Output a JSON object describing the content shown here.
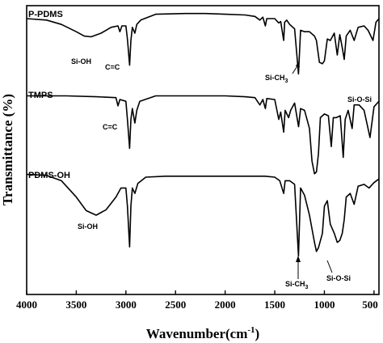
{
  "chart_data": {
    "type": "line",
    "xlabel": "Wavenumber(cm",
    "xlabel_sup": "-1",
    "xlabel_end": ")",
    "ylabel": "Transmittance (%)",
    "xlim": [
      4000,
      450
    ],
    "x_reversed": true,
    "xticks": [
      4000,
      3500,
      3000,
      2500,
      2000,
      1500,
      1000,
      500
    ],
    "grid": false,
    "series": [
      {
        "name": "P-PDMS",
        "points": [
          [
            4000,
            0.9
          ],
          [
            3800,
            0.88
          ],
          [
            3650,
            0.82
          ],
          [
            3500,
            0.72
          ],
          [
            3420,
            0.66
          ],
          [
            3350,
            0.65
          ],
          [
            3250,
            0.7
          ],
          [
            3150,
            0.78
          ],
          [
            3080,
            0.8
          ],
          [
            3060,
            0.72
          ],
          [
            3040,
            0.8
          ],
          [
            3000,
            0.8
          ],
          [
            2985,
            0.62
          ],
          [
            2963,
            0.26
          ],
          [
            2950,
            0.6
          ],
          [
            2935,
            0.78
          ],
          [
            2910,
            0.7
          ],
          [
            2890,
            0.82
          ],
          [
            2850,
            0.88
          ],
          [
            2700,
            0.96
          ],
          [
            2400,
            0.97
          ],
          [
            2200,
            0.97
          ],
          [
            2000,
            0.96
          ],
          [
            1800,
            0.95
          ],
          [
            1700,
            0.93
          ],
          [
            1650,
            0.88
          ],
          [
            1620,
            0.92
          ],
          [
            1595,
            0.8
          ],
          [
            1580,
            0.9
          ],
          [
            1500,
            0.9
          ],
          [
            1460,
            0.84
          ],
          [
            1440,
            0.86
          ],
          [
            1410,
            0.6
          ],
          [
            1400,
            0.85
          ],
          [
            1380,
            0.88
          ],
          [
            1350,
            0.82
          ],
          [
            1300,
            0.76
          ],
          [
            1261,
            0.14
          ],
          [
            1240,
            0.74
          ],
          [
            1200,
            0.72
          ],
          [
            1150,
            0.72
          ],
          [
            1100,
            0.66
          ],
          [
            1080,
            0.6
          ],
          [
            1050,
            0.3
          ],
          [
            1020,
            0.28
          ],
          [
            1000,
            0.32
          ],
          [
            970,
            0.62
          ],
          [
            940,
            0.6
          ],
          [
            900,
            0.7
          ],
          [
            870,
            0.4
          ],
          [
            845,
            0.68
          ],
          [
            820,
            0.5
          ],
          [
            800,
            0.34
          ],
          [
            780,
            0.66
          ],
          [
            740,
            0.74
          ],
          [
            700,
            0.6
          ],
          [
            660,
            0.78
          ],
          [
            600,
            0.8
          ],
          [
            560,
            0.74
          ],
          [
            510,
            0.6
          ],
          [
            480,
            0.85
          ],
          [
            450,
            0.9
          ]
        ],
        "annotations": [
          "Si-OH",
          "C=C",
          "Si-CH",
          "3",
          "Si-O-Si"
        ]
      },
      {
        "name": "TMPS",
        "points": [
          [
            4000,
            0.96
          ],
          [
            3600,
            0.96
          ],
          [
            3300,
            0.95
          ],
          [
            3100,
            0.94
          ],
          [
            3080,
            0.85
          ],
          [
            3060,
            0.92
          ],
          [
            3000,
            0.9
          ],
          [
            2985,
            0.7
          ],
          [
            2963,
            0.38
          ],
          [
            2950,
            0.7
          ],
          [
            2935,
            0.82
          ],
          [
            2910,
            0.66
          ],
          [
            2890,
            0.8
          ],
          [
            2860,
            0.9
          ],
          [
            2700,
            0.96
          ],
          [
            2400,
            0.96
          ],
          [
            2200,
            0.96
          ],
          [
            2000,
            0.96
          ],
          [
            1800,
            0.95
          ],
          [
            1700,
            0.94
          ],
          [
            1650,
            0.86
          ],
          [
            1620,
            0.92
          ],
          [
            1595,
            0.82
          ],
          [
            1580,
            0.93
          ],
          [
            1500,
            0.92
          ],
          [
            1460,
            0.7
          ],
          [
            1440,
            0.78
          ],
          [
            1410,
            0.56
          ],
          [
            1395,
            0.8
          ],
          [
            1360,
            0.72
          ],
          [
            1340,
            0.8
          ],
          [
            1300,
            0.88
          ],
          [
            1260,
            0.62
          ],
          [
            1240,
            0.82
          ],
          [
            1200,
            0.8
          ],
          [
            1150,
            0.6
          ],
          [
            1125,
            0.24
          ],
          [
            1100,
            0.1
          ],
          [
            1080,
            0.12
          ],
          [
            1060,
            0.32
          ],
          [
            1040,
            0.72
          ],
          [
            1000,
            0.76
          ],
          [
            960,
            0.74
          ],
          [
            930,
            0.4
          ],
          [
            910,
            0.72
          ],
          [
            880,
            0.72
          ],
          [
            840,
            0.74
          ],
          [
            810,
            0.28
          ],
          [
            790,
            0.7
          ],
          [
            760,
            0.8
          ],
          [
            720,
            0.6
          ],
          [
            700,
            0.86
          ],
          [
            650,
            0.86
          ],
          [
            600,
            0.8
          ],
          [
            540,
            0.5
          ],
          [
            500,
            0.84
          ],
          [
            450,
            0.9
          ]
        ],
        "annotations": [
          "C=C"
        ]
      },
      {
        "name": "PDMS-OH",
        "points": [
          [
            4000,
            0.95
          ],
          [
            3800,
            0.94
          ],
          [
            3650,
            0.88
          ],
          [
            3500,
            0.7
          ],
          [
            3400,
            0.55
          ],
          [
            3300,
            0.5
          ],
          [
            3200,
            0.56
          ],
          [
            3100,
            0.7
          ],
          [
            3050,
            0.8
          ],
          [
            3000,
            0.8
          ],
          [
            2985,
            0.6
          ],
          [
            2963,
            0.15
          ],
          [
            2950,
            0.6
          ],
          [
            2935,
            0.8
          ],
          [
            2910,
            0.74
          ],
          [
            2880,
            0.85
          ],
          [
            2800,
            0.92
          ],
          [
            2600,
            0.93
          ],
          [
            2400,
            0.93
          ],
          [
            2200,
            0.93
          ],
          [
            2000,
            0.93
          ],
          [
            1800,
            0.93
          ],
          [
            1600,
            0.93
          ],
          [
            1500,
            0.92
          ],
          [
            1450,
            0.88
          ],
          [
            1410,
            0.74
          ],
          [
            1395,
            0.88
          ],
          [
            1350,
            0.88
          ],
          [
            1300,
            0.84
          ],
          [
            1261,
            0.05
          ],
          [
            1240,
            0.8
          ],
          [
            1200,
            0.72
          ],
          [
            1150,
            0.5
          ],
          [
            1100,
            0.2
          ],
          [
            1080,
            0.1
          ],
          [
            1060,
            0.14
          ],
          [
            1020,
            0.3
          ],
          [
            1000,
            0.6
          ],
          [
            970,
            0.66
          ],
          [
            940,
            0.4
          ],
          [
            900,
            0.3
          ],
          [
            870,
            0.2
          ],
          [
            845,
            0.22
          ],
          [
            820,
            0.3
          ],
          [
            800,
            0.45
          ],
          [
            780,
            0.7
          ],
          [
            740,
            0.74
          ],
          [
            700,
            0.62
          ],
          [
            660,
            0.82
          ],
          [
            600,
            0.84
          ],
          [
            550,
            0.8
          ],
          [
            500,
            0.86
          ],
          [
            450,
            0.9
          ]
        ],
        "annotations": [
          "Si-OH",
          "Si-CH",
          "3",
          "Si-O-Si"
        ]
      }
    ]
  }
}
